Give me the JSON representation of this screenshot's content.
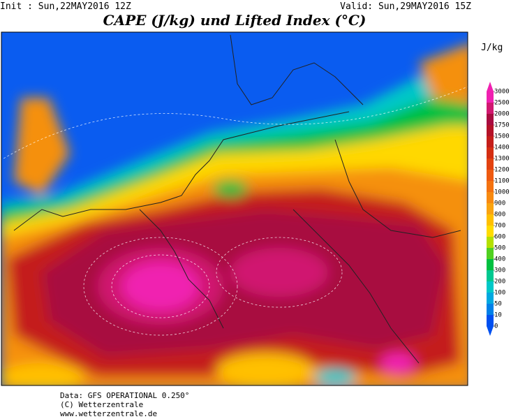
{
  "header": {
    "init": "Init : Sun,22MAY2016 12Z",
    "valid": "Valid: Sun,29MAY2016 15Z",
    "title": "CAPE (J/kg) und Lifted Index (°C)"
  },
  "colorbar": {
    "unit": "J/kg",
    "levels": [
      3000,
      2500,
      2000,
      1750,
      1500,
      1400,
      1300,
      1200,
      1100,
      1000,
      900,
      800,
      700,
      600,
      500,
      400,
      300,
      200,
      100,
      50,
      10,
      0
    ],
    "colors": [
      "#f020b0",
      "#d01870",
      "#a80c40",
      "#b41228",
      "#c41e1a",
      "#d42e12",
      "#e24210",
      "#ee5a10",
      "#f47210",
      "#f88a10",
      "#faa410",
      "#ffc000",
      "#ffdc00",
      "#b4e000",
      "#50d020",
      "#00c040",
      "#00c890",
      "#00c8c8",
      "#00a8e0",
      "#0080e8",
      "#0050f0"
    ]
  },
  "footer": {
    "source": "Data: GFS OPERATIONAL 0.250°",
    "copyright": "(C) Wetterzentrale",
    "url": "www.wetterzentrale.de"
  }
}
